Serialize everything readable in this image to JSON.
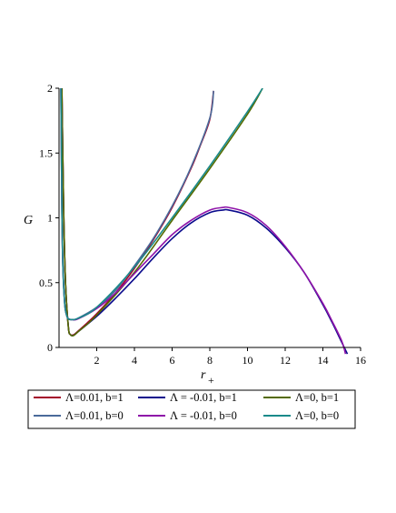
{
  "chart_data": {
    "type": "line",
    "title": "",
    "xlabel": "r",
    "xlabel_sub": "+",
    "ylabel": "G",
    "xlim": [
      0,
      16
    ],
    "ylim": [
      0,
      2
    ],
    "x_ticks": [
      2,
      4,
      6,
      8,
      10,
      12,
      14,
      16
    ],
    "y_ticks": [
      0,
      0.5,
      1,
      1.5,
      2
    ],
    "x_tick_labels": [
      "2",
      "4",
      "6",
      "8",
      "10",
      "12",
      "14",
      "16"
    ],
    "y_tick_labels": [
      "0",
      "0.5",
      "1",
      "1.5",
      "2"
    ],
    "grid": false,
    "legend_position": "bottom",
    "series": [
      {
        "name": "Λ=0.01, b=1",
        "color": "#a3002a",
        "x": [
          0.15,
          0.25,
          0.35,
          0.5,
          0.6,
          0.7,
          0.8,
          1,
          1.5,
          2,
          3,
          4,
          5,
          6,
          7,
          7.5,
          8,
          8.2
        ],
        "y": [
          2.0,
          1.02,
          0.48,
          0.15,
          0.1,
          0.095,
          0.1,
          0.125,
          0.19,
          0.26,
          0.42,
          0.61,
          0.83,
          1.08,
          1.38,
          1.56,
          1.76,
          1.98
        ]
      },
      {
        "name": "Λ = -0.01, b=1",
        "color": "#0a0a8c",
        "x": [
          0.15,
          0.25,
          0.35,
          0.5,
          0.6,
          0.7,
          0.8,
          1,
          2,
          3,
          4,
          5,
          6,
          7,
          8,
          8.7,
          9,
          10,
          11,
          12,
          13,
          14,
          14.5,
          15,
          15.3
        ],
        "y": [
          2.0,
          1.02,
          0.48,
          0.15,
          0.1,
          0.092,
          0.095,
          0.12,
          0.24,
          0.38,
          0.53,
          0.69,
          0.84,
          0.96,
          1.04,
          1.06,
          1.06,
          1.02,
          0.92,
          0.77,
          0.58,
          0.33,
          0.19,
          0.04,
          -0.05
        ]
      },
      {
        "name": "Λ=0, b=1",
        "color": "#556b00",
        "x": [
          0.15,
          0.25,
          0.35,
          0.5,
          0.6,
          0.7,
          0.8,
          1,
          2,
          4,
          6,
          8,
          10,
          10.8
        ],
        "y": [
          2.0,
          1.02,
          0.48,
          0.15,
          0.1,
          0.09,
          0.095,
          0.12,
          0.25,
          0.58,
          0.98,
          1.38,
          1.8,
          2.0
        ]
      },
      {
        "name": "Λ=0.01, b=0",
        "color": "#4a6a9a",
        "x": [
          0.1,
          0.15,
          0.2,
          0.3,
          0.4,
          0.5,
          0.7,
          1,
          2,
          3,
          4,
          5,
          6,
          7,
          8,
          8.2
        ],
        "y": [
          2.0,
          1.1,
          0.65,
          0.34,
          0.25,
          0.22,
          0.215,
          0.225,
          0.31,
          0.44,
          0.63,
          0.84,
          1.09,
          1.39,
          1.77,
          1.98
        ]
      },
      {
        "name": "Λ = -0.01, b=0",
        "color": "#8e12a8",
        "x": [
          0.1,
          0.15,
          0.2,
          0.3,
          0.4,
          0.5,
          0.7,
          1,
          2,
          3,
          4,
          5,
          6,
          7,
          8,
          8.7,
          9,
          10,
          11,
          12,
          13,
          14,
          14.5,
          15,
          15.2
        ],
        "y": [
          2.0,
          1.1,
          0.65,
          0.34,
          0.25,
          0.22,
          0.215,
          0.22,
          0.3,
          0.42,
          0.57,
          0.72,
          0.87,
          0.98,
          1.06,
          1.08,
          1.08,
          1.04,
          0.94,
          0.78,
          0.58,
          0.34,
          0.2,
          0.05,
          -0.05
        ]
      },
      {
        "name": "Λ=0, b=0",
        "color": "#1a8a8a",
        "x": [
          0.1,
          0.15,
          0.2,
          0.3,
          0.4,
          0.5,
          0.7,
          1,
          2,
          4,
          6,
          8,
          10,
          10.8
        ],
        "y": [
          2.0,
          1.1,
          0.65,
          0.34,
          0.25,
          0.22,
          0.215,
          0.225,
          0.31,
          0.62,
          1.0,
          1.4,
          1.82,
          2.0
        ]
      }
    ]
  }
}
